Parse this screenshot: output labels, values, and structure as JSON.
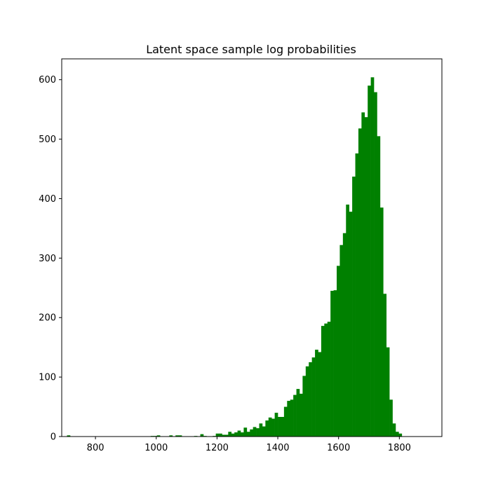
{
  "chart_data": {
    "type": "bar",
    "title": "Latent space sample log probabilities",
    "xlabel": "",
    "ylabel": "",
    "xlim": [
      689,
      1940
    ],
    "ylim": [
      0,
      635
    ],
    "bar_color": "#008000",
    "grid": false,
    "legend": "none",
    "x_ticks": [
      800,
      1000,
      1200,
      1400,
      1600,
      1800
    ],
    "y_ticks": [
      0,
      100,
      200,
      300,
      400,
      500,
      600
    ],
    "bin_width": 10.2,
    "bins": [
      [
        706.4,
        2
      ],
      [
        716.6,
        0
      ],
      [
        726.8,
        0
      ],
      [
        737.0,
        0
      ],
      [
        747.2,
        0
      ],
      [
        757.4,
        0
      ],
      [
        767.6,
        0
      ],
      [
        777.8,
        0
      ],
      [
        788.0,
        0
      ],
      [
        798.2,
        0
      ],
      [
        808.4,
        0
      ],
      [
        818.6,
        0
      ],
      [
        828.8,
        0
      ],
      [
        839.0,
        0
      ],
      [
        849.2,
        0
      ],
      [
        859.4,
        0
      ],
      [
        869.6,
        0
      ],
      [
        879.8,
        0
      ],
      [
        890.0,
        0
      ],
      [
        900.2,
        0
      ],
      [
        910.4,
        0
      ],
      [
        920.6,
        0
      ],
      [
        930.8,
        0
      ],
      [
        941.0,
        0
      ],
      [
        951.2,
        0
      ],
      [
        961.4,
        0
      ],
      [
        971.6,
        0
      ],
      [
        981.8,
        1
      ],
      [
        992.0,
        1
      ],
      [
        1002.2,
        2
      ],
      [
        1012.4,
        0
      ],
      [
        1022.6,
        0
      ],
      [
        1032.8,
        0
      ],
      [
        1043.0,
        2
      ],
      [
        1053.2,
        0
      ],
      [
        1063.4,
        2
      ],
      [
        1073.6,
        2
      ],
      [
        1083.8,
        0
      ],
      [
        1094.0,
        0
      ],
      [
        1104.2,
        0
      ],
      [
        1114.4,
        0
      ],
      [
        1124.6,
        1
      ],
      [
        1134.8,
        0
      ],
      [
        1145.0,
        4
      ],
      [
        1155.2,
        1
      ],
      [
        1165.4,
        0
      ],
      [
        1175.6,
        0
      ],
      [
        1185.8,
        1
      ],
      [
        1196.0,
        5
      ],
      [
        1206.2,
        5
      ],
      [
        1216.4,
        3
      ],
      [
        1226.6,
        3
      ],
      [
        1236.8,
        8
      ],
      [
        1247.0,
        5
      ],
      [
        1257.2,
        7
      ],
      [
        1267.4,
        10
      ],
      [
        1277.6,
        7
      ],
      [
        1287.8,
        15
      ],
      [
        1298.0,
        8
      ],
      [
        1308.2,
        12
      ],
      [
        1318.4,
        16
      ],
      [
        1328.6,
        14
      ],
      [
        1338.8,
        22
      ],
      [
        1349.0,
        17
      ],
      [
        1359.2,
        27
      ],
      [
        1369.4,
        32
      ],
      [
        1379.6,
        30
      ],
      [
        1389.8,
        40
      ],
      [
        1400.0,
        33
      ],
      [
        1410.2,
        33
      ],
      [
        1420.4,
        50
      ],
      [
        1430.6,
        60
      ],
      [
        1440.8,
        62
      ],
      [
        1451.0,
        70
      ],
      [
        1461.2,
        80
      ],
      [
        1471.4,
        72
      ],
      [
        1481.6,
        102
      ],
      [
        1491.8,
        118
      ],
      [
        1502.0,
        125
      ],
      [
        1512.2,
        133
      ],
      [
        1522.4,
        146
      ],
      [
        1532.6,
        142
      ],
      [
        1542.8,
        186
      ],
      [
        1553.0,
        190
      ],
      [
        1563.2,
        193
      ],
      [
        1573.4,
        245
      ],
      [
        1583.6,
        246
      ],
      [
        1593.8,
        287
      ],
      [
        1604.0,
        322
      ],
      [
        1614.2,
        342
      ],
      [
        1624.4,
        390
      ],
      [
        1634.6,
        378
      ],
      [
        1644.8,
        437
      ],
      [
        1655.0,
        476
      ],
      [
        1665.2,
        518
      ],
      [
        1675.4,
        545
      ],
      [
        1685.6,
        537
      ],
      [
        1695.8,
        590
      ],
      [
        1706.0,
        604
      ],
      [
        1716.2,
        579
      ],
      [
        1726.4,
        505
      ],
      [
        1736.6,
        385
      ],
      [
        1746.8,
        240
      ],
      [
        1757.0,
        150
      ],
      [
        1767.2,
        62
      ],
      [
        1777.4,
        22
      ],
      [
        1787.6,
        8
      ],
      [
        1797.8,
        5
      ]
    ]
  }
}
